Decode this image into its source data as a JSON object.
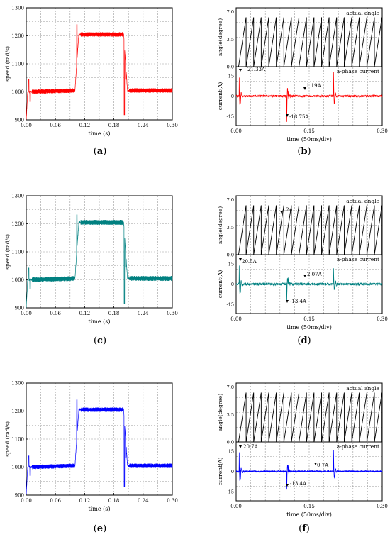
{
  "chart_data": [
    {
      "id": "a",
      "type": "line",
      "caption": "a",
      "xlabel": "time (s)",
      "ylabel": "speed (rad/s)",
      "xlim": [
        0,
        0.3
      ],
      "ylim": [
        900,
        1300
      ],
      "xticks": [
        "0.00",
        "0.06",
        "0.12",
        "0.18",
        "0.24",
        "0.30"
      ],
      "yticks": [
        "900",
        "1000",
        "1100",
        "1200",
        "1300"
      ],
      "grid": true,
      "color": "#ff0000",
      "series": [
        {
          "steady": [
            [
              0.0,
              900
            ],
            [
              0.003,
              1000
            ],
            [
              0.1,
              1005
            ],
            [
              0.108,
              1205
            ],
            [
              0.2,
              1205
            ],
            [
              0.208,
              1005
            ],
            [
              0.3,
              1005
            ]
          ],
          "ripple_amplitude": 8,
          "transients": [
            [
              0.005,
              1045
            ],
            [
              0.008,
              965
            ],
            [
              0.104,
              1240
            ],
            [
              0.2015,
              918
            ],
            [
              0.2045,
              1045
            ]
          ]
        }
      ]
    },
    {
      "id": "b",
      "type": "line",
      "caption": "b",
      "xlabel": "time (50ms/div)",
      "xlim": [
        0,
        0.3
      ],
      "xticks": [
        "0.00",
        "0.15",
        "0.30"
      ],
      "grid": true,
      "panels": [
        {
          "name": "actual angle",
          "ylabel": "angle(degree)",
          "ylim": [
            0,
            7.5
          ],
          "yticks": [
            "0.0",
            "3.5",
            "7.0"
          ],
          "color": "#000000",
          "sawtooth_start": 0.005,
          "sawtooth_period": 0.0155,
          "sawtooth_max": 6.28
        },
        {
          "name": "a-phase current",
          "ylabel": "current(A)",
          "ylim": [
            -22,
            22
          ],
          "yticks": [
            "-15",
            "0",
            "15"
          ],
          "color": "#ff0000",
          "ripple_amplitude": 0.8,
          "spikes": [
            [
              0.006,
              21.33
            ],
            [
              0.009,
              -8
            ],
            [
              0.104,
              -18.75
            ],
            [
              0.107,
              5
            ],
            [
              0.2,
              18
            ],
            [
              0.203,
              -5
            ]
          ],
          "annotations": [
            "21.33A",
            "-18.75A",
            "1.19A"
          ]
        }
      ]
    },
    {
      "id": "c",
      "type": "line",
      "caption": "c",
      "xlabel": "time (s)",
      "ylabel": "speed (rad/s)",
      "xlim": [
        0,
        0.3
      ],
      "ylim": [
        900,
        1300
      ],
      "xticks": [
        "0.00",
        "0.06",
        "0.12",
        "0.18",
        "0.24",
        "0.30"
      ],
      "yticks": [
        "900",
        "1000",
        "1100",
        "1200",
        "1300"
      ],
      "grid": true,
      "color": "#008080",
      "series": [
        {
          "steady": [
            [
              0.0,
              900
            ],
            [
              0.003,
              1000
            ],
            [
              0.1,
              1005
            ],
            [
              0.108,
              1205
            ],
            [
              0.2,
              1205
            ],
            [
              0.208,
              1005
            ],
            [
              0.3,
              1005
            ]
          ],
          "ripple_amplitude": 9,
          "transients": [
            [
              0.005,
              1042
            ],
            [
              0.008,
              968
            ],
            [
              0.104,
              1232
            ],
            [
              0.2015,
              915
            ],
            [
              0.2045,
              1045
            ]
          ]
        }
      ]
    },
    {
      "id": "d",
      "type": "line",
      "caption": "d",
      "xlabel": "time (50ms/div)",
      "xlim": [
        0,
        0.3
      ],
      "xticks": [
        "0.00",
        "0.15",
        "0.30"
      ],
      "grid": true,
      "panels": [
        {
          "name": "actual angle",
          "ylabel": "angle(degree)",
          "ylim": [
            0,
            7.5
          ],
          "yticks": [
            "0.0",
            "3.5",
            "7.0"
          ],
          "color": "#000000",
          "sawtooth_start": 0.005,
          "sawtooth_period": 0.0155,
          "sawtooth_max": 6.28,
          "annotations": [
            "2π"
          ]
        },
        {
          "name": "a-phase current",
          "ylabel": "current(A)",
          "ylim": [
            -22,
            22
          ],
          "yticks": [
            "-15",
            "0",
            "15"
          ],
          "color": "#008080",
          "ripple_amplitude": 1.0,
          "spikes": [
            [
              0.006,
              20.5
            ],
            [
              0.009,
              -8
            ],
            [
              0.104,
              -13.4
            ],
            [
              0.107,
              6
            ],
            [
              0.2,
              12
            ],
            [
              0.203,
              -6
            ]
          ],
          "annotations": [
            "20.5A",
            "-13.4A",
            "2.07A"
          ]
        }
      ]
    },
    {
      "id": "e",
      "type": "line",
      "caption": "e",
      "xlabel": "time (s)",
      "ylabel": "speed (rad/s)",
      "xlim": [
        0,
        0.3
      ],
      "ylim": [
        900,
        1300
      ],
      "xticks": [
        "0.00",
        "0.06",
        "0.12",
        "0.18",
        "0.24",
        "0.30"
      ],
      "yticks": [
        "900",
        "1000",
        "1100",
        "1200",
        "1300"
      ],
      "grid": true,
      "color": "#0000ff",
      "series": [
        {
          "steady": [
            [
              0.0,
              900
            ],
            [
              0.003,
              1000
            ],
            [
              0.1,
              1005
            ],
            [
              0.108,
              1205
            ],
            [
              0.2,
              1205
            ],
            [
              0.208,
              1005
            ],
            [
              0.3,
              1005
            ]
          ],
          "ripple_amplitude": 8,
          "transients": [
            [
              0.005,
              1040
            ],
            [
              0.008,
              970
            ],
            [
              0.104,
              1240
            ],
            [
              0.2015,
              930
            ],
            [
              0.2045,
              1035
            ]
          ]
        }
      ]
    },
    {
      "id": "f",
      "type": "line",
      "caption": "f",
      "xlabel": "time (50ms/div)",
      "xlim": [
        0,
        0.3
      ],
      "xticks": [
        "0.00",
        "0.15",
        "0.30"
      ],
      "grid": true,
      "panels": [
        {
          "name": "actual angle",
          "ylabel": "angle(degree)",
          "ylim": [
            0,
            7.5
          ],
          "yticks": [
            "0.0",
            "3.5",
            "7.0"
          ],
          "color": "#000000",
          "sawtooth_start": 0.005,
          "sawtooth_period": 0.0155,
          "sawtooth_max": 6.28
        },
        {
          "name": "a-phase current",
          "ylabel": "current(A)",
          "ylim": [
            -22,
            22
          ],
          "yticks": [
            "-15",
            "0",
            "15"
          ],
          "color": "#0000ff",
          "ripple_amplitude": 0.6,
          "spikes": [
            [
              0.006,
              20.7
            ],
            [
              0.009,
              -8
            ],
            [
              0.104,
              -13.4
            ],
            [
              0.107,
              6
            ],
            [
              0.2,
              16
            ],
            [
              0.203,
              -6
            ]
          ],
          "annotations": [
            "20.7A",
            "-13.4A",
            "0.7A"
          ]
        }
      ]
    }
  ]
}
